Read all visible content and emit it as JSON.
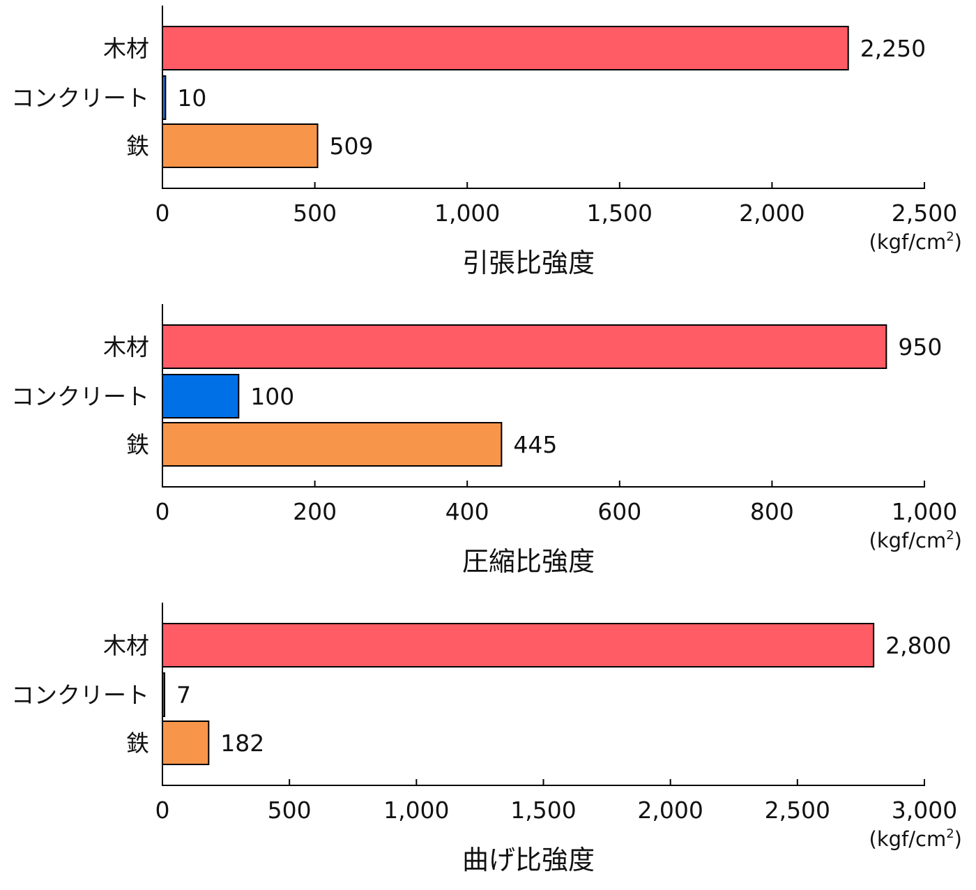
{
  "chart_data": [
    {
      "type": "bar",
      "orientation": "horizontal",
      "title": "引張比強度",
      "unit": "(kgf/cm",
      "unit_sup": "2",
      "unit_close": ")",
      "categories": [
        "木材",
        "コンクリート",
        "鉄"
      ],
      "values": [
        2250,
        10,
        509
      ],
      "value_labels": [
        "2,250",
        "10",
        "509"
      ],
      "colors": [
        "#FF5C66",
        "#1C74E8",
        "#F7954A"
      ],
      "xlim": [
        0,
        2500
      ],
      "xticks": [
        0,
        500,
        1000,
        1500,
        2000,
        2500
      ],
      "xtick_labels": [
        "0",
        "500",
        "1,000",
        "1,500",
        "2,000",
        "2,500"
      ]
    },
    {
      "type": "bar",
      "orientation": "horizontal",
      "title": "圧縮比強度",
      "unit": "(kgf/cm",
      "unit_sup": "2",
      "unit_close": ")",
      "categories": [
        "木材",
        "コンクリート",
        "鉄"
      ],
      "values": [
        950,
        100,
        445
      ],
      "value_labels": [
        "950",
        "100",
        "445"
      ],
      "colors": [
        "#FF5C66",
        "#0070E6",
        "#F7954A"
      ],
      "xlim": [
        0,
        1000
      ],
      "xticks": [
        0,
        200,
        400,
        600,
        800,
        1000
      ],
      "xtick_labels": [
        "0",
        "200",
        "400",
        "600",
        "800",
        "1,000"
      ]
    },
    {
      "type": "bar",
      "orientation": "horizontal",
      "title": "曲げ比強度",
      "unit": "(kgf/cm",
      "unit_sup": "2",
      "unit_close": ")",
      "categories": [
        "木材",
        "コンクリート",
        "鉄"
      ],
      "values": [
        2800,
        7,
        182
      ],
      "value_labels": [
        "2,800",
        "7",
        "182"
      ],
      "colors": [
        "#FF5C66",
        "#1C74E8",
        "#F7954A"
      ],
      "xlim": [
        0,
        3000
      ],
      "xticks": [
        0,
        500,
        1000,
        1500,
        2000,
        2500,
        3000
      ],
      "xtick_labels": [
        "0",
        "500",
        "1,000",
        "1,500",
        "2,000",
        "2,500",
        "3,000"
      ]
    }
  ]
}
